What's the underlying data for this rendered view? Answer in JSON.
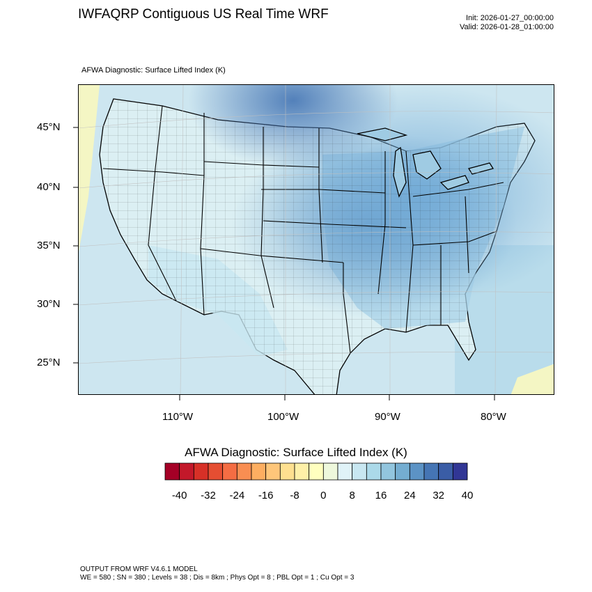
{
  "header": {
    "title": "IWFAQRP Contiguous US Real Time WRF",
    "init": "Init: 2026-01-27_00:00:00",
    "valid": "Valid: 2026-01-28_01:00:00"
  },
  "map": {
    "subtitle": "AFWA Diagnostic: Surface Lifted Index   (K)",
    "lat_labels": [
      "45°N",
      "40°N",
      "35°N",
      "30°N",
      "25°N"
    ],
    "lon_labels": [
      "110°W",
      "100°W",
      "90°W",
      "80°W"
    ],
    "colors": {
      "ocean": "#cde6f0",
      "land_low": "#e3f3f0",
      "land_mid": "#a9d3e8",
      "land_high": "#6fa9d6",
      "warm": "#f6f6c2"
    }
  },
  "colorbar": {
    "title": "AFWA Diagnostic: Surface Lifted Index  (K)",
    "colors": [
      "#a50026",
      "#c3182a",
      "#d73027",
      "#e54e32",
      "#f46d43",
      "#f98e52",
      "#fdae61",
      "#fec67a",
      "#fee090",
      "#fef0a8",
      "#ffffbf",
      "#eef8dc",
      "#e0f3f8",
      "#c8e7f1",
      "#abd9e9",
      "#92c5de",
      "#74add1",
      "#5c93c5",
      "#4575b4",
      "#3a5da6",
      "#313695"
    ],
    "tick_labels": [
      "-40",
      "-32",
      "-24",
      "-16",
      "-8",
      "0",
      "8",
      "16",
      "24",
      "32",
      "40"
    ]
  },
  "footer": {
    "line1": "OUTPUT FROM WRF V4.6.1 MODEL",
    "line2": "WE = 580 ; SN = 380 ; Levels = 38 ; Dis = 8km ; Phys Opt = 8 ; PBL Opt = 1 ; Cu Opt = 3"
  }
}
